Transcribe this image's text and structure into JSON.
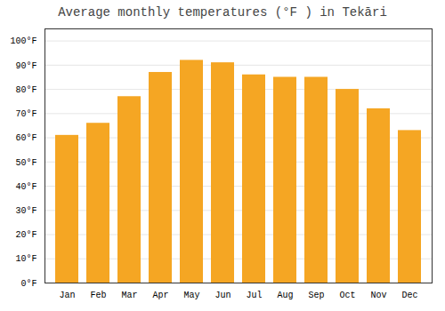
{
  "chart_data": {
    "type": "bar",
    "title": "Average monthly temperatures (°F ) in Tekāri",
    "categories": [
      "Jan",
      "Feb",
      "Mar",
      "Apr",
      "May",
      "Jun",
      "Jul",
      "Aug",
      "Sep",
      "Oct",
      "Nov",
      "Dec"
    ],
    "values": [
      61,
      66,
      77,
      87,
      92,
      91,
      86,
      85,
      85,
      80,
      72,
      63
    ],
    "color": "#F5A623",
    "ylim": [
      0,
      105
    ],
    "yticks": [
      {
        "value": 0,
        "label": "0°F"
      },
      {
        "value": 10,
        "label": "10°F"
      },
      {
        "value": 20,
        "label": "20°F"
      },
      {
        "value": 30,
        "label": "30°F"
      },
      {
        "value": 40,
        "label": "40°F"
      },
      {
        "value": 50,
        "label": "50°F"
      },
      {
        "value": 60,
        "label": "60°F"
      },
      {
        "value": 70,
        "label": "70°F"
      },
      {
        "value": 80,
        "label": "80°F"
      },
      {
        "value": 90,
        "label": "90°F"
      },
      {
        "value": 100,
        "label": "100°F"
      }
    ],
    "grid": true
  }
}
